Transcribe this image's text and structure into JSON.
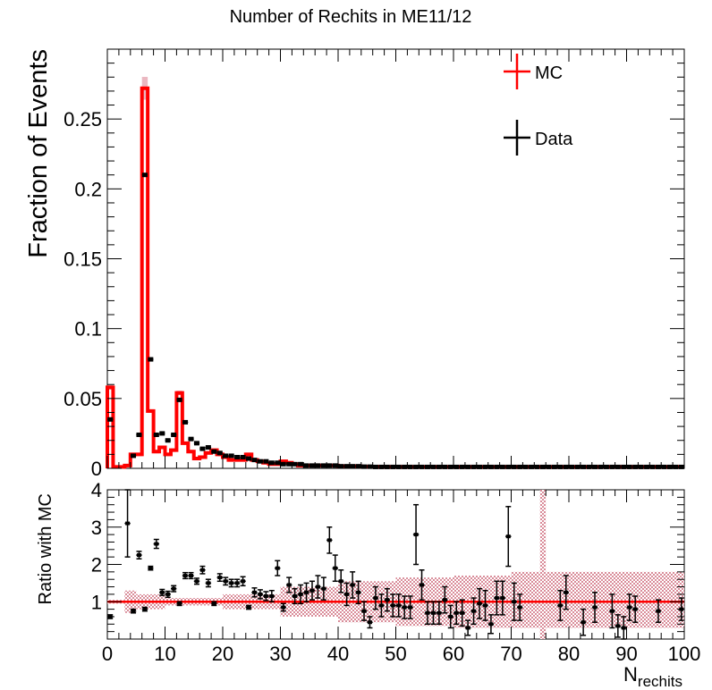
{
  "chart_data": {
    "type": "histogram_with_ratio",
    "title": "Number of Rechits in ME11/12",
    "top_panel": {
      "ylabel": "Fraction of Events",
      "ylim": [
        0,
        0.3
      ],
      "yticks": [
        0,
        0.05,
        0.1,
        0.15,
        0.2,
        0.25
      ],
      "ytick_labels": [
        "0",
        "0.05",
        "0.1",
        "0.15",
        "0.2",
        "0.25"
      ],
      "legend": {
        "placement": "top-right",
        "entries": [
          {
            "label": "MC",
            "color": "#ff0000"
          },
          {
            "label": "Data",
            "color": "#000000"
          }
        ]
      },
      "mc_color": "#ff0000",
      "data_color": "#000000",
      "x": [
        0,
        1,
        2,
        3,
        4,
        5,
        6,
        7,
        8,
        9,
        10,
        11,
        12,
        13,
        14,
        15,
        16,
        17,
        18,
        19,
        20,
        21,
        22,
        23,
        24,
        25,
        26,
        27,
        28,
        29,
        30,
        31,
        32,
        33,
        34,
        35,
        36,
        37,
        38,
        39,
        40,
        41,
        42,
        43,
        44,
        45,
        46,
        47,
        48,
        49,
        50,
        51,
        52,
        53,
        54,
        55,
        56,
        57,
        58,
        59,
        60,
        61,
        62,
        63,
        64,
        65,
        66,
        67,
        68,
        69,
        70,
        71,
        72,
        73,
        74,
        75,
        76,
        77,
        78,
        79,
        80,
        81,
        82,
        83,
        84,
        85,
        86,
        87,
        88,
        89,
        90,
        91,
        92,
        93,
        94,
        95,
        96,
        97,
        98,
        99
      ],
      "mc_values": [
        0.058,
        0.001,
        0.001,
        0.002,
        0.01,
        0.01,
        0.272,
        0.041,
        0.012,
        0.015,
        0.01,
        0.013,
        0.054,
        0.018,
        0.012,
        0.007,
        0.008,
        0.011,
        0.013,
        0.01,
        0.008,
        0.006,
        0.006,
        0.006,
        0.01,
        0.006,
        0.005,
        0.004,
        0.003,
        0.003,
        0.005,
        0.004,
        0.003,
        0.002,
        0.002,
        0.002,
        0.002,
        0.002,
        0.002,
        0.002,
        0.0015,
        0.0015,
        0.0015,
        0.0015,
        0.0012,
        0.0012,
        0.0012,
        0.0012,
        0.001,
        0.001,
        0.001,
        0.001,
        0.001,
        0.001,
        0.001,
        0.001,
        0.001,
        0.001,
        0.001,
        0.001,
        0.001,
        0.001,
        0.001,
        0.001,
        0.001,
        0.001,
        0.001,
        0.001,
        0.001,
        0.001,
        0.001,
        0.001,
        0.001,
        0.001,
        0.001,
        0.001,
        0.001,
        0.001,
        0.001,
        0.001,
        0.001,
        0.001,
        0.001,
        0.001,
        0.001,
        0.001,
        0.001,
        0.001,
        0.001,
        0.001,
        0.001,
        0.001,
        0.001,
        0.001,
        0.001,
        0.001,
        0.001,
        0.001,
        0.001,
        0.001
      ],
      "data_values": [
        0.035,
        0.0,
        0.0,
        0.0,
        0.009,
        0.024,
        0.21,
        0.078,
        0.024,
        0.025,
        0.02,
        0.024,
        0.049,
        0.033,
        0.021,
        0.018,
        0.014,
        0.015,
        0.012,
        0.011,
        0.009,
        0.009,
        0.008,
        0.008,
        0.007,
        0.006,
        0.005,
        0.005,
        0.004,
        0.004,
        0.003,
        0.003,
        0.003,
        0.003,
        0.002,
        0.002,
        0.002,
        0.002,
        0.002,
        0.002,
        0.0015,
        0.0015,
        0.0015,
        0.0015,
        0.0012,
        0.0012,
        0.001,
        0.001,
        0.001,
        0.001,
        0.001,
        0.001,
        0.001,
        0.001,
        0.001,
        0.001,
        0.001,
        0.001,
        0.001,
        0.001,
        0.001,
        0.001,
        0.001,
        0.001,
        0.001,
        0.001,
        0.001,
        0.001,
        0.001,
        0.001,
        0.001,
        0.001,
        0.001,
        0.001,
        0.001,
        0.001,
        0.001,
        0.001,
        0.001,
        0.001,
        0.001,
        0.001,
        0.001,
        0.001,
        0.001,
        0.001,
        0.001,
        0.001,
        0.001,
        0.001,
        0.001,
        0.001,
        0.001,
        0.001,
        0.001,
        0.001,
        0.001,
        0.001,
        0.001,
        0.001
      ]
    },
    "ratio_panel": {
      "ylabel": "Ratio with MC",
      "ylim": [
        0,
        4
      ],
      "yticks": [
        1,
        2,
        3,
        4
      ],
      "ytick_labels": [
        "1",
        "2",
        "3",
        "4"
      ],
      "reference_line": 1,
      "x": [
        0,
        3,
        4,
        5,
        6,
        7,
        8,
        9,
        10,
        11,
        12,
        13,
        14,
        15,
        16,
        17,
        18,
        19,
        20,
        21,
        22,
        23,
        24,
        25,
        26,
        27,
        28,
        29,
        30,
        31,
        32,
        33,
        34,
        35,
        36,
        37,
        38,
        39,
        40,
        41,
        42,
        43,
        44,
        45,
        46,
        47,
        48,
        49,
        50,
        51,
        52,
        53,
        54,
        55,
        56,
        57,
        58,
        59,
        60,
        61,
        62,
        63,
        64,
        65,
        66,
        67,
        68,
        69,
        70,
        71,
        78,
        79,
        82,
        84,
        87,
        88,
        89,
        90,
        91,
        95,
        99
      ],
      "values": [
        0.6,
        3.1,
        0.75,
        2.25,
        0.8,
        1.9,
        2.55,
        1.25,
        1.2,
        1.35,
        0.95,
        1.7,
        1.7,
        1.55,
        1.85,
        1.5,
        0.95,
        1.65,
        1.55,
        1.5,
        1.5,
        1.55,
        0.85,
        1.25,
        1.2,
        1.15,
        1.15,
        1.9,
        0.85,
        1.45,
        1.15,
        1.2,
        1.25,
        1.3,
        1.4,
        1.35,
        2.65,
        1.9,
        1.55,
        1.2,
        1.45,
        1.25,
        0.75,
        0.45,
        1.1,
        0.9,
        1.05,
        0.9,
        0.9,
        0.85,
        0.85,
        2.8,
        1.45,
        0.7,
        0.7,
        0.7,
        1.05,
        0.6,
        0.7,
        0.7,
        0.3,
        0.75,
        0.95,
        0.9,
        0.4,
        1.1,
        1.1,
        2.75,
        1.0,
        0.85,
        0.9,
        1.25,
        0.45,
        0.85,
        0.75,
        0.35,
        0.3,
        0.85,
        0.8,
        0.75,
        0.8
      ],
      "errors": [
        0.05,
        0.9,
        0.05,
        0.1,
        0.05,
        0.05,
        0.12,
        0.08,
        0.08,
        0.08,
        0.05,
        0.08,
        0.08,
        0.08,
        0.1,
        0.1,
        0.05,
        0.1,
        0.1,
        0.1,
        0.1,
        0.12,
        0.05,
        0.12,
        0.12,
        0.12,
        0.15,
        0.2,
        0.1,
        0.2,
        0.2,
        0.25,
        0.25,
        0.25,
        0.3,
        0.3,
        0.35,
        0.35,
        0.3,
        0.3,
        0.35,
        0.3,
        0.25,
        0.15,
        0.3,
        0.3,
        0.3,
        0.3,
        0.3,
        0.3,
        0.3,
        0.8,
        0.4,
        0.3,
        0.3,
        0.3,
        0.35,
        0.3,
        0.3,
        0.35,
        0.2,
        0.35,
        0.4,
        0.4,
        0.25,
        0.45,
        0.45,
        0.8,
        0.5,
        0.35,
        0.4,
        0.45,
        0.35,
        0.4,
        0.45,
        0.3,
        0.3,
        0.35,
        0.35,
        0.3,
        0.3
      ],
      "mc_band": [
        [
          0,
          0.95,
          1.05
        ],
        [
          3,
          0.7,
          1.3
        ],
        [
          5,
          0.8,
          1.2
        ],
        [
          10,
          0.9,
          1.1
        ],
        [
          20,
          0.8,
          1.2
        ],
        [
          30,
          0.6,
          1.4
        ],
        [
          40,
          0.45,
          1.55
        ],
        [
          50,
          0.35,
          1.65
        ],
        [
          60,
          0.3,
          1.7
        ],
        [
          70,
          0.3,
          1.8
        ],
        [
          75,
          0.0,
          4.0
        ],
        [
          76,
          0.3,
          1.8
        ],
        [
          80,
          0.3,
          1.8
        ],
        [
          90,
          0.3,
          1.8
        ],
        [
          100,
          0.3,
          1.8
        ]
      ]
    },
    "xlabel": "N",
    "xlabel_subscript": "rechits",
    "xlim": [
      0,
      100
    ],
    "xticks": [
      0,
      10,
      20,
      30,
      40,
      50,
      60,
      70,
      80,
      90,
      100
    ],
    "xtick_labels": [
      "0",
      "10",
      "20",
      "30",
      "40",
      "50",
      "60",
      "70",
      "80",
      "90",
      "100"
    ]
  }
}
